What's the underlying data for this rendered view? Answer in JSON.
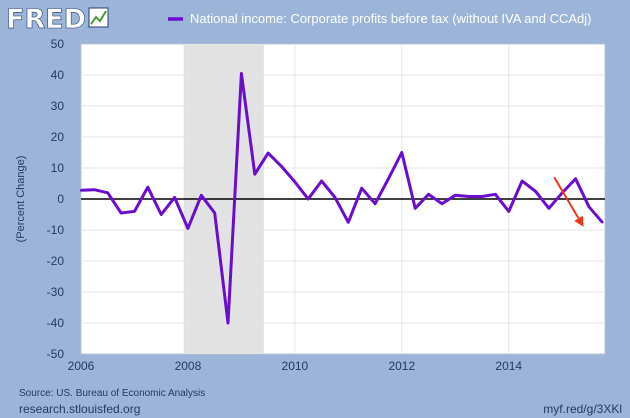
{
  "header": {
    "logo_text": "FRED"
  },
  "chart_data": {
    "type": "line",
    "ylabel": "(Percent Change)",
    "ylim": [
      -50,
      50
    ],
    "yticks": [
      50,
      40,
      30,
      20,
      10,
      0,
      -10,
      -20,
      -30,
      -40,
      -50
    ],
    "xlim": [
      2006.0,
      2015.8
    ],
    "xticks": [
      2006,
      2008,
      2010,
      2012,
      2014
    ],
    "grid": true,
    "legend_position": "top",
    "colors": {
      "line": "#6a0dcc",
      "recession": "#e2e2e2",
      "arrow": "#f2361c",
      "zero": "#000000"
    },
    "recession": {
      "start": 2007.92,
      "end": 2009.42
    },
    "annotation": {
      "type": "arrow",
      "from": [
        2014.85,
        7
      ],
      "to": [
        2015.4,
        -9
      ]
    },
    "series": [
      {
        "name": "National income: Corporate profits before tax (without IVA and CCAdj)",
        "x": [
          2006.0,
          2006.25,
          2006.5,
          2006.75,
          2007.0,
          2007.25,
          2007.5,
          2007.75,
          2008.0,
          2008.25,
          2008.5,
          2008.75,
          2009.0,
          2009.25,
          2009.5,
          2009.75,
          2010.0,
          2010.25,
          2010.5,
          2010.75,
          2011.0,
          2011.25,
          2011.5,
          2011.75,
          2012.0,
          2012.25,
          2012.5,
          2012.75,
          2013.0,
          2013.25,
          2013.5,
          2013.75,
          2014.0,
          2014.25,
          2014.5,
          2014.75,
          2015.0,
          2015.25,
          2015.5,
          2015.75
        ],
        "values": [
          2.8,
          3.0,
          2.0,
          -4.5,
          -4.0,
          3.8,
          -5.0,
          0.5,
          -9.5,
          1.2,
          -4.5,
          -40.0,
          40.5,
          8.0,
          14.8,
          10.5,
          5.5,
          0.0,
          5.8,
          0.5,
          -7.5,
          3.5,
          -1.5,
          6.5,
          15.0,
          -3.0,
          1.5,
          -1.5,
          1.2,
          0.8,
          0.8,
          1.5,
          -4.0,
          5.8,
          2.5,
          -3.0,
          2.0,
          6.5,
          -2.5,
          -7.5
        ]
      }
    ]
  },
  "footer": {
    "source": "Source: US. Bureau of Economic Analysis",
    "site": "research.stlouisfed.org",
    "short_link": "myf.red/g/3XKl"
  }
}
